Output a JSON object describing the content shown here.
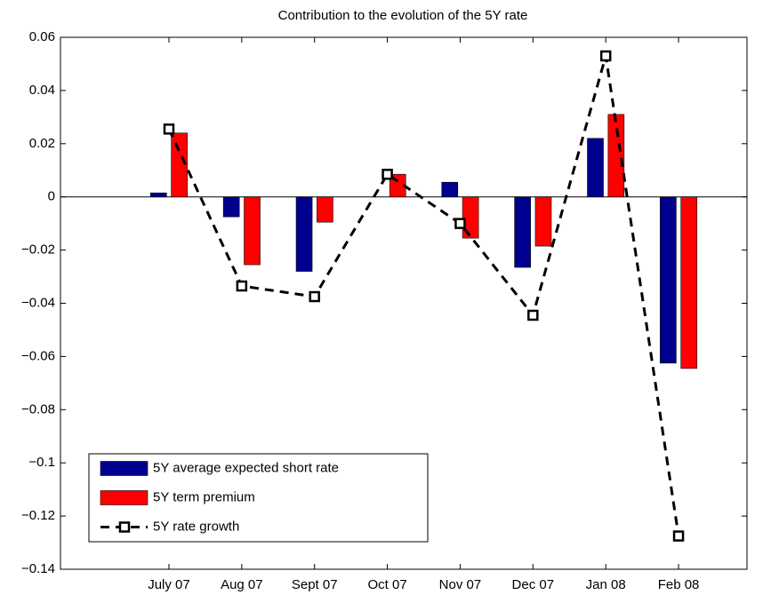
{
  "chart_data": {
    "type": "bar",
    "title": "Contribution to the evolution of the 5Y rate",
    "categories": [
      "July 07",
      "Aug 07",
      "Sept 07",
      "Oct 07",
      "Nov 07",
      "Dec 07",
      "Jan 08",
      "Feb 08"
    ],
    "series": [
      {
        "name": "5Y average expected short rate",
        "color": "#00008f",
        "type": "bar",
        "values": [
          0.0015,
          -0.0075,
          -0.028,
          0,
          0.0055,
          -0.0265,
          0.022,
          -0.0625
        ]
      },
      {
        "name": "5Y term premium",
        "color": "#ff0000",
        "type": "bar",
        "values": [
          0.024,
          -0.0255,
          -0.0095,
          0.0085,
          -0.0155,
          -0.0185,
          0.031,
          -0.0645
        ]
      },
      {
        "name": "5Y rate growth",
        "color": "#000000",
        "type": "line",
        "line_style": "dashed",
        "marker": "square",
        "values": [
          0.0255,
          -0.0335,
          -0.0375,
          0.0085,
          -0.01,
          -0.0445,
          0.053,
          -0.1275
        ]
      }
    ],
    "ylim": [
      -0.14,
      0.06
    ],
    "yticks": [
      {
        "value": -0.14,
        "label": "−0.14"
      },
      {
        "value": -0.12,
        "label": "−0.12"
      },
      {
        "value": -0.1,
        "label": "−0.1"
      },
      {
        "value": -0.08,
        "label": "−0.08"
      },
      {
        "value": -0.06,
        "label": "−0.06"
      },
      {
        "value": -0.04,
        "label": "−0.04"
      },
      {
        "value": -0.02,
        "label": "−0.02"
      },
      0,
      0.02,
      0.04,
      0.06
    ],
    "grid": false,
    "legend": "lower-left"
  }
}
